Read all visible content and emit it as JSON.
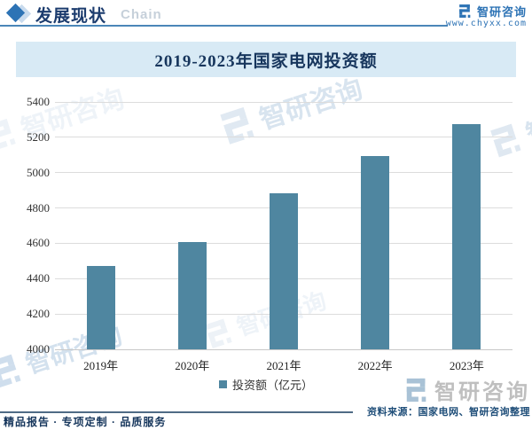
{
  "header": {
    "section_title": "发展现状",
    "section_subtitle": "Chain",
    "brand_name": "智研咨询",
    "brand_url": "www.chyxx.com"
  },
  "chart_data": {
    "type": "bar",
    "title": "2019-2023年国家电网投资额",
    "categories": [
      "2019年",
      "2020年",
      "2021年",
      "2022年",
      "2023年"
    ],
    "values": [
      4473,
      4605,
      4882,
      5094,
      5277
    ],
    "series_name": "投资额（亿元）",
    "xlabel": "",
    "ylabel": "",
    "ylim": [
      4000,
      5400
    ],
    "yticks": [
      4000,
      4200,
      4400,
      4600,
      4800,
      5000,
      5200,
      5400
    ],
    "grid": true,
    "legend_position": "bottom",
    "bar_color": "#4f86a0"
  },
  "watermark": {
    "text": "智研咨询"
  },
  "footer": {
    "source_text": "资料来源：国家电网、智研咨询整理",
    "services_text": "精品报告 · 专项定制 · 品质服务",
    "brand_name": "智研咨询"
  },
  "colors": {
    "navy": "#17365d",
    "brand_blue": "#2d73b5",
    "bar_teal": "#4f86a0",
    "title_band_bg": "#d8eaf5",
    "gridline": "#dcdcdc"
  }
}
